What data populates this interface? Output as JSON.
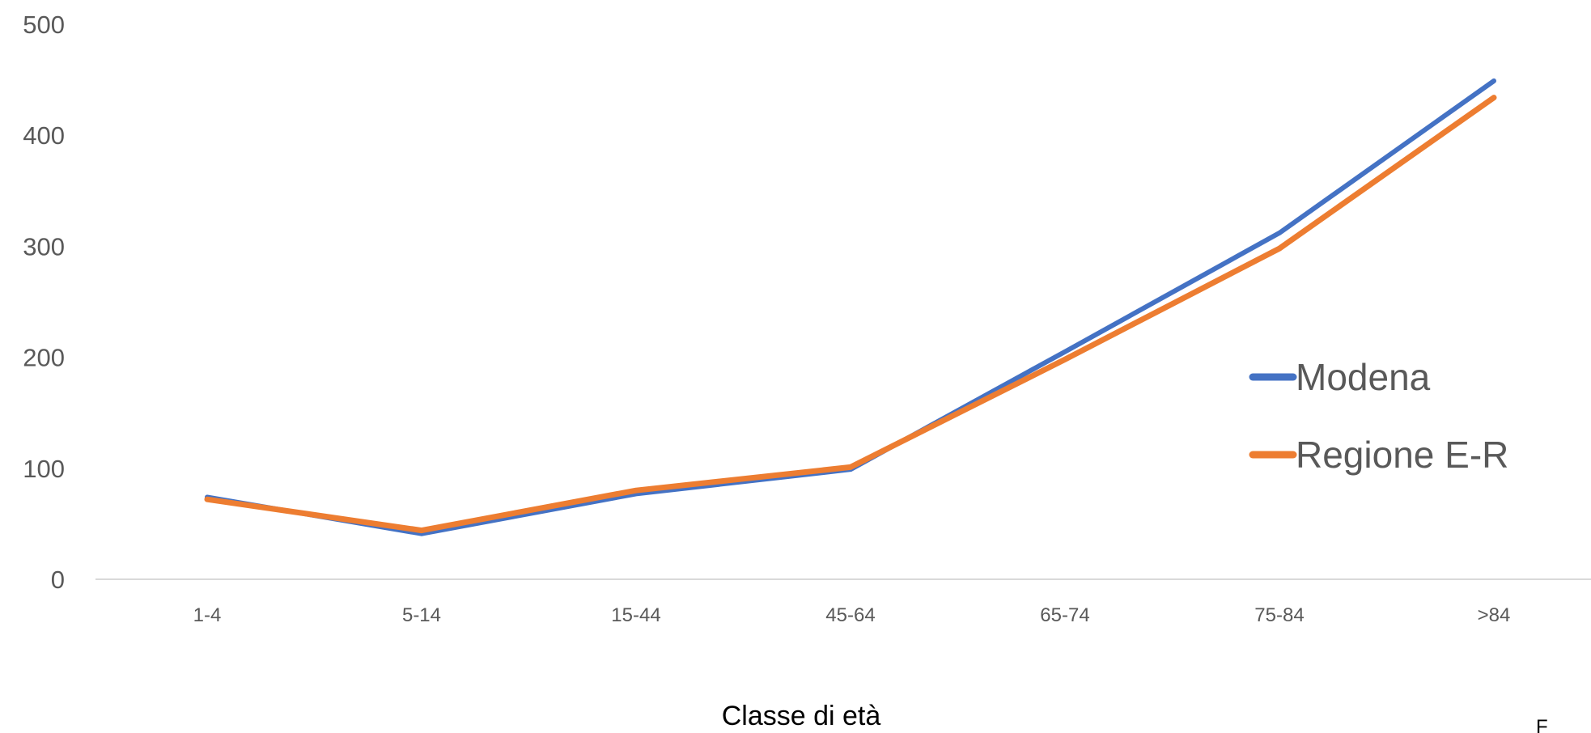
{
  "chart_data": {
    "type": "line",
    "categories": [
      "1-4",
      "5-14",
      "15-44",
      "45-64",
      "65-74",
      "75-84",
      ">84"
    ],
    "series": [
      {
        "name": "Modena",
        "values": [
          74,
          41,
          77,
          99,
          205,
          312,
          449
        ],
        "color": "#4472C4"
      },
      {
        "name": "Regione E-R",
        "values": [
          72,
          44,
          80,
          101,
          198,
          298,
          434
        ],
        "color": "#ED7D31"
      }
    ],
    "title": "",
    "xlabel": "Classe di età",
    "ylabel": "",
    "ylim": [
      0,
      500
    ],
    "yticks": [
      0,
      100,
      200,
      300,
      400,
      500
    ],
    "grid": false,
    "legend_position": "right"
  },
  "corner_text": "F"
}
